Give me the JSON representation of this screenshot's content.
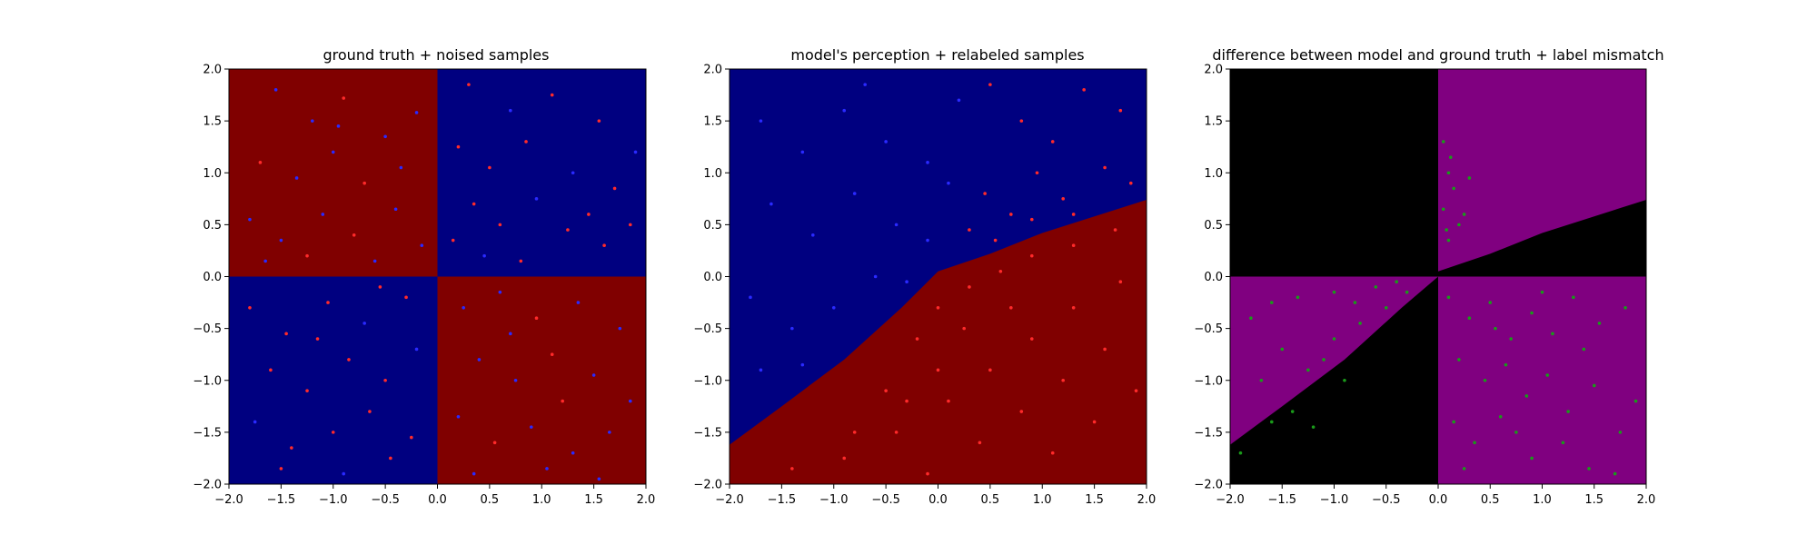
{
  "figure": {
    "background": "#ffffff"
  },
  "chart_data": [
    {
      "type": "scatter",
      "title": "ground truth + noised samples",
      "xlim": [
        -2,
        2
      ],
      "ylim": [
        -2,
        2
      ],
      "xticks": [
        "−2.0",
        "−1.5",
        "−1.0",
        "−0.5",
        "0.0",
        "0.5",
        "1.0",
        "1.5",
        "2.0"
      ],
      "yticks": [
        "−2.0",
        "−1.5",
        "−1.0",
        "−0.5",
        "0.0",
        "0.5",
        "1.0",
        "1.5",
        "2.0"
      ],
      "background_regions": [
        {
          "quadrant": "x<0,y>0",
          "color": "#800000"
        },
        {
          "quadrant": "x>0,y>0",
          "color": "#000080"
        },
        {
          "quadrant": "x<0,y<0",
          "color": "#000080"
        },
        {
          "quadrant": "x>0,y<0",
          "color": "#800000"
        }
      ],
      "series_colors": [
        "#ff2a2a",
        "#2a2aff"
      ],
      "points": [
        [
          -1.55,
          1.8,
          1
        ],
        [
          -1.2,
          1.5,
          1
        ],
        [
          -0.9,
          1.72,
          0
        ],
        [
          -0.5,
          1.35,
          1
        ],
        [
          -0.2,
          1.58,
          1
        ],
        [
          -1.7,
          1.1,
          0
        ],
        [
          -1.35,
          0.95,
          1
        ],
        [
          -1.0,
          1.2,
          1
        ],
        [
          -0.7,
          0.9,
          0
        ],
        [
          -0.35,
          1.05,
          1
        ],
        [
          -1.8,
          0.55,
          1
        ],
        [
          -1.5,
          0.35,
          1
        ],
        [
          -1.1,
          0.6,
          1
        ],
        [
          -0.8,
          0.4,
          0
        ],
        [
          -0.4,
          0.65,
          1
        ],
        [
          -0.15,
          0.3,
          1
        ],
        [
          -1.65,
          0.15,
          1
        ],
        [
          -1.25,
          0.2,
          0
        ],
        [
          -0.6,
          0.15,
          1
        ],
        [
          -0.95,
          1.45,
          1
        ],
        [
          0.3,
          1.85,
          0
        ],
        [
          0.7,
          1.6,
          1
        ],
        [
          1.1,
          1.75,
          0
        ],
        [
          1.55,
          1.5,
          0
        ],
        [
          1.9,
          1.2,
          1
        ],
        [
          0.2,
          1.25,
          0
        ],
        [
          0.5,
          1.05,
          0
        ],
        [
          0.85,
          1.3,
          0
        ],
        [
          1.3,
          1.0,
          1
        ],
        [
          1.7,
          0.85,
          0
        ],
        [
          0.35,
          0.7,
          0
        ],
        [
          0.6,
          0.5,
          0
        ],
        [
          0.95,
          0.75,
          1
        ],
        [
          1.25,
          0.45,
          0
        ],
        [
          1.6,
          0.3,
          0
        ],
        [
          0.15,
          0.35,
          0
        ],
        [
          0.45,
          0.2,
          1
        ],
        [
          0.8,
          0.15,
          0
        ],
        [
          1.45,
          0.6,
          0
        ],
        [
          1.85,
          0.5,
          0
        ],
        [
          -1.8,
          -0.3,
          0
        ],
        [
          -1.45,
          -0.55,
          0
        ],
        [
          -1.05,
          -0.25,
          0
        ],
        [
          -0.7,
          -0.45,
          1
        ],
        [
          -0.3,
          -0.2,
          0
        ],
        [
          -1.6,
          -0.9,
          0
        ],
        [
          -1.25,
          -1.1,
          0
        ],
        [
          -0.85,
          -0.8,
          0
        ],
        [
          -0.5,
          -1.0,
          0
        ],
        [
          -0.2,
          -0.7,
          1
        ],
        [
          -1.75,
          -1.4,
          1
        ],
        [
          -1.4,
          -1.65,
          0
        ],
        [
          -1.0,
          -1.5,
          0
        ],
        [
          -0.65,
          -1.3,
          0
        ],
        [
          -0.25,
          -1.55,
          0
        ],
        [
          -1.5,
          -1.85,
          0
        ],
        [
          -0.9,
          -1.9,
          1
        ],
        [
          -0.45,
          -1.75,
          0
        ],
        [
          -1.15,
          -0.6,
          0
        ],
        [
          -0.55,
          -0.1,
          0
        ],
        [
          0.25,
          -0.3,
          1
        ],
        [
          0.6,
          -0.15,
          1
        ],
        [
          0.95,
          -0.4,
          0
        ],
        [
          1.35,
          -0.25,
          1
        ],
        [
          1.75,
          -0.5,
          1
        ],
        [
          0.4,
          -0.8,
          1
        ],
        [
          0.75,
          -1.0,
          1
        ],
        [
          1.1,
          -0.75,
          0
        ],
        [
          1.5,
          -0.95,
          1
        ],
        [
          1.85,
          -1.2,
          1
        ],
        [
          0.2,
          -1.35,
          1
        ],
        [
          0.55,
          -1.6,
          0
        ],
        [
          0.9,
          -1.45,
          1
        ],
        [
          1.3,
          -1.7,
          1
        ],
        [
          1.65,
          -1.5,
          1
        ],
        [
          0.35,
          -1.9,
          1
        ],
        [
          1.05,
          -1.85,
          1
        ],
        [
          1.55,
          -1.95,
          1
        ],
        [
          0.7,
          -0.55,
          1
        ],
        [
          1.2,
          -1.2,
          0
        ]
      ]
    },
    {
      "type": "scatter",
      "title": "model's perception + relabeled samples",
      "xlim": [
        -2,
        2
      ],
      "ylim": [
        -2,
        2
      ],
      "xticks": [
        "−2.0",
        "−1.5",
        "−1.0",
        "−0.5",
        "0.0",
        "0.5",
        "1.0",
        "1.5",
        "2.0"
      ],
      "yticks": [
        "−2.0",
        "−1.5",
        "−1.0",
        "−0.5",
        "0.0",
        "0.5",
        "1.0",
        "1.5",
        "2.0"
      ],
      "boundary": [
        [
          -2.0,
          -1.62
        ],
        [
          -1.5,
          -1.25
        ],
        [
          -0.9,
          -0.8
        ],
        [
          -0.35,
          -0.3
        ],
        [
          0.0,
          0.05
        ],
        [
          0.5,
          0.22
        ],
        [
          1.0,
          0.42
        ],
        [
          1.5,
          0.58
        ],
        [
          2.0,
          0.74
        ]
      ],
      "region_colors": {
        "above": "#000080",
        "below": "#800000"
      },
      "series_colors": [
        "#ff2a2a",
        "#2a2aff"
      ],
      "points": [
        [
          -1.7,
          1.5,
          1
        ],
        [
          -1.3,
          1.2,
          1
        ],
        [
          -0.9,
          1.6,
          1
        ],
        [
          -0.5,
          1.3,
          1
        ],
        [
          -0.1,
          1.1,
          1
        ],
        [
          -1.6,
          0.7,
          1
        ],
        [
          -1.2,
          0.4,
          1
        ],
        [
          -0.8,
          0.8,
          1
        ],
        [
          -0.4,
          0.5,
          1
        ],
        [
          -0.1,
          0.35,
          1
        ],
        [
          -1.8,
          -0.2,
          1
        ],
        [
          -1.4,
          -0.5,
          1
        ],
        [
          -1.0,
          -0.3,
          1
        ],
        [
          -0.6,
          0.0,
          1
        ],
        [
          -0.3,
          -0.05,
          1
        ],
        [
          -1.7,
          -0.9,
          1
        ],
        [
          -1.3,
          -0.85,
          1
        ],
        [
          -0.7,
          1.85,
          1
        ],
        [
          0.2,
          1.7,
          1
        ],
        [
          0.1,
          0.9,
          1
        ],
        [
          0.5,
          1.85,
          0
        ],
        [
          0.8,
          1.5,
          0
        ],
        [
          1.1,
          1.3,
          0
        ],
        [
          1.4,
          1.8,
          0
        ],
        [
          1.75,
          1.6,
          0
        ],
        [
          0.45,
          0.8,
          0
        ],
        [
          0.7,
          0.6,
          0
        ],
        [
          0.95,
          1.0,
          0
        ],
        [
          1.2,
          0.75,
          0
        ],
        [
          1.6,
          1.05,
          0
        ],
        [
          0.3,
          0.45,
          0
        ],
        [
          0.55,
          0.35,
          0
        ],
        [
          0.9,
          0.55,
          0
        ],
        [
          1.3,
          0.6,
          0
        ],
        [
          1.85,
          0.9,
          0
        ],
        [
          -0.8,
          -1.5,
          0
        ],
        [
          -0.5,
          -1.1,
          0
        ],
        [
          -0.2,
          -0.6,
          0
        ],
        [
          0.0,
          -0.3,
          0
        ],
        [
          0.3,
          -0.1,
          0
        ],
        [
          0.6,
          0.05,
          0
        ],
        [
          0.9,
          0.2,
          0
        ],
        [
          1.3,
          0.3,
          0
        ],
        [
          1.7,
          0.45,
          0
        ],
        [
          -1.4,
          -1.85,
          0
        ],
        [
          -0.9,
          -1.75,
          0
        ],
        [
          -0.4,
          -1.5,
          0
        ],
        [
          0.1,
          -1.2,
          0
        ],
        [
          0.5,
          -0.9,
          0
        ],
        [
          0.9,
          -0.6,
          0
        ],
        [
          1.3,
          -0.3,
          0
        ],
        [
          1.75,
          -0.05,
          0
        ],
        [
          -0.1,
          -1.9,
          0
        ],
        [
          0.4,
          -1.6,
          0
        ],
        [
          0.8,
          -1.3,
          0
        ],
        [
          1.2,
          -1.0,
          0
        ],
        [
          1.6,
          -0.7,
          0
        ],
        [
          0.25,
          -0.5,
          0
        ],
        [
          0.7,
          -0.3,
          0
        ],
        [
          1.1,
          -1.7,
          0
        ],
        [
          1.5,
          -1.4,
          0
        ],
        [
          1.9,
          -1.1,
          0
        ],
        [
          0.0,
          -0.9,
          0
        ],
        [
          -0.3,
          -1.2,
          0
        ]
      ]
    },
    {
      "type": "scatter",
      "title": "difference between model and ground truth + label mismatch",
      "xlim": [
        -2,
        2
      ],
      "ylim": [
        -2,
        2
      ],
      "xticks": [
        "−2.0",
        "−1.5",
        "−1.0",
        "−0.5",
        "0.0",
        "0.5",
        "1.0",
        "1.5",
        "2.0"
      ],
      "yticks": [
        "−2.0",
        "−1.5",
        "−1.0",
        "−0.5",
        "0.0",
        "0.5",
        "1.0",
        "1.5",
        "2.0"
      ],
      "region_colors": {
        "match": "#000000",
        "mismatch": "#800080"
      },
      "series_colors": [
        "#1a9a1a"
      ],
      "points": [
        [
          0.05,
          1.3
        ],
        [
          0.1,
          1.0
        ],
        [
          0.15,
          0.85
        ],
        [
          0.05,
          0.65
        ],
        [
          0.2,
          0.5
        ],
        [
          0.1,
          0.35
        ],
        [
          0.25,
          0.6
        ],
        [
          0.12,
          1.15
        ],
        [
          0.3,
          0.95
        ],
        [
          0.08,
          0.45
        ],
        [
          -1.9,
          -1.7
        ],
        [
          -1.6,
          -1.4
        ],
        [
          -1.4,
          -1.3
        ],
        [
          -1.2,
          -1.45
        ],
        [
          -1.7,
          -1.0
        ],
        [
          -1.5,
          -0.7
        ],
        [
          -1.25,
          -0.9
        ],
        [
          -1.0,
          -0.6
        ],
        [
          -0.75,
          -0.45
        ],
        [
          -0.5,
          -0.3
        ],
        [
          -0.3,
          -0.15
        ],
        [
          -1.8,
          -0.4
        ],
        [
          -1.35,
          -0.2
        ],
        [
          -1.0,
          -0.15
        ],
        [
          -0.6,
          -0.1
        ],
        [
          -1.6,
          -0.25
        ],
        [
          -1.1,
          -0.8
        ],
        [
          -0.9,
          -1.0
        ],
        [
          -0.8,
          -0.25
        ],
        [
          -0.4,
          -0.05
        ],
        [
          0.1,
          -0.2
        ],
        [
          0.3,
          -0.4
        ],
        [
          0.5,
          -0.25
        ],
        [
          0.7,
          -0.6
        ],
        [
          0.9,
          -0.35
        ],
        [
          1.1,
          -0.55
        ],
        [
          1.3,
          -0.2
        ],
        [
          1.55,
          -0.45
        ],
        [
          1.8,
          -0.3
        ],
        [
          0.2,
          -0.8
        ],
        [
          0.45,
          -1.0
        ],
        [
          0.65,
          -0.85
        ],
        [
          0.85,
          -1.15
        ],
        [
          1.05,
          -0.95
        ],
        [
          1.25,
          -1.3
        ],
        [
          1.5,
          -1.05
        ],
        [
          1.75,
          -1.5
        ],
        [
          0.15,
          -1.4
        ],
        [
          0.35,
          -1.6
        ],
        [
          0.6,
          -1.35
        ],
        [
          0.9,
          -1.75
        ],
        [
          1.2,
          -1.6
        ],
        [
          1.45,
          -1.85
        ],
        [
          1.7,
          -1.9
        ],
        [
          0.25,
          -1.85
        ],
        [
          0.55,
          -0.5
        ],
        [
          0.75,
          -1.5
        ],
        [
          1.0,
          -0.15
        ],
        [
          1.4,
          -0.7
        ],
        [
          1.9,
          -1.2
        ]
      ]
    }
  ]
}
